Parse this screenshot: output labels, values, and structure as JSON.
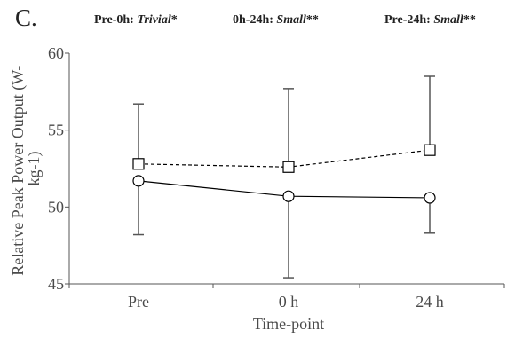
{
  "panel_label": "C.",
  "effects": [
    {
      "prefix": "Pre-0h: ",
      "effect": "Trivial",
      "suffix": "*"
    },
    {
      "prefix": "0h-24h: ",
      "effect": "Small",
      "suffix": "**"
    },
    {
      "prefix": "Pre-24h: ",
      "effect": "Small",
      "suffix": "**"
    }
  ],
  "chart_data": {
    "type": "line",
    "xlabel": "Time-point",
    "ylabel": "Relative Peak Power Output (W-kg-1)",
    "ylabel_lines": [
      "Relative Peak Power Output (W-",
      "kg-1)"
    ],
    "categories": [
      "Pre",
      "0 h",
      "24 h"
    ],
    "ylim": [
      45,
      60
    ],
    "yticks": [
      45,
      50,
      55,
      60
    ],
    "grid": false,
    "legend": "none",
    "series": [
      {
        "marker": "square",
        "line_style": "dashed",
        "values": [
          52.8,
          52.6,
          53.7
        ],
        "error_upper": [
          56.7,
          57.7,
          58.5
        ],
        "error_lower": null
      },
      {
        "marker": "circle",
        "line_style": "solid",
        "values": [
          51.7,
          50.7,
          50.6
        ],
        "error_upper": null,
        "error_lower": [
          48.2,
          45.4,
          48.3
        ]
      }
    ]
  }
}
